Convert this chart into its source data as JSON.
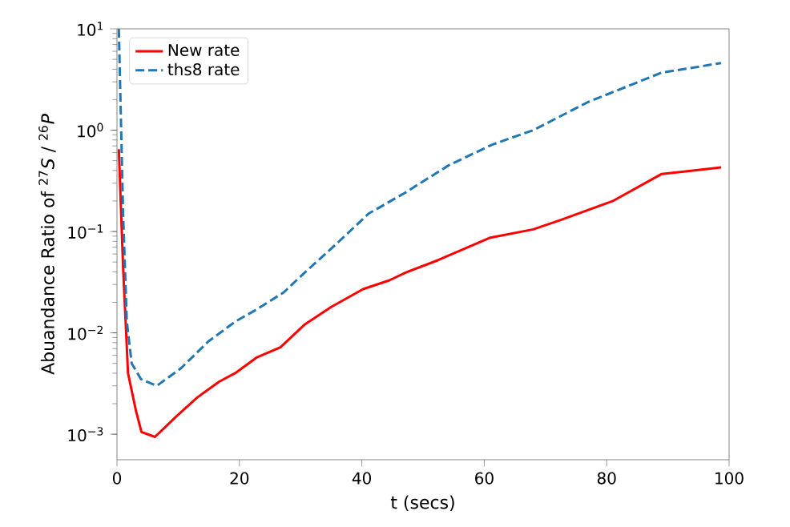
{
  "chart_data": {
    "type": "line",
    "xlabel": "t (secs)",
    "ylabel": "Abuandance Ratio of $^{27}$*S* / $^{26}$*P*",
    "log": "y",
    "xlim": [
      0,
      100
    ],
    "ylim": [
      0.00056,
      10
    ],
    "xticks": [
      0,
      20,
      40,
      60,
      80,
      100
    ],
    "yticks": [
      {
        "value": 0.001,
        "label": "10$^{−3}$"
      },
      {
        "value": 0.01,
        "label": "10$^{−2}$"
      },
      {
        "value": 0.1,
        "label": "10$^{−1}$"
      },
      {
        "value": 1,
        "label": "10$^{0}$"
      },
      {
        "value": 10,
        "label": "10$^{1}$"
      }
    ],
    "grid": false,
    "legend": "top left",
    "marker": "none",
    "series": [
      {
        "name": "New rate",
        "color": "#ff0000",
        "line_style": "solid",
        "x": [
          0.3,
          1,
          1.8,
          3.1,
          4,
          6.2,
          9.7,
          13.1,
          16.7,
          19.3,
          22.8,
          26.7,
          30.6,
          35,
          40.2,
          44.5,
          47,
          52.4,
          61,
          68,
          72.5,
          81,
          89,
          92.6,
          98.7
        ],
        "values": [
          0.65,
          0.044,
          0.004,
          0.0017,
          0.00105,
          0.00094,
          0.0015,
          0.0023,
          0.0033,
          0.004,
          0.0057,
          0.0072,
          0.012,
          0.018,
          0.027,
          0.033,
          0.039,
          0.052,
          0.087,
          0.105,
          0.13,
          0.2,
          0.37,
          0.39,
          0.43
        ]
      },
      {
        "name": "ths8 rate",
        "color": "#1f77b4",
        "line_style": "dashed",
        "x": [
          0.3,
          1,
          1.6,
          2.4,
          3.9,
          6.5,
          10.5,
          14.9,
          19.4,
          22.8,
          27.2,
          30.6,
          35.9,
          41.1,
          47,
          54.2,
          61.3,
          68,
          77,
          89,
          92.6,
          98.7
        ],
        "values": [
          10,
          0.15,
          0.013,
          0.005,
          0.0035,
          0.003,
          0.0045,
          0.0082,
          0.013,
          0.017,
          0.025,
          0.039,
          0.076,
          0.15,
          0.24,
          0.45,
          0.72,
          1.0,
          1.9,
          3.7,
          4.0,
          4.6
        ]
      }
    ]
  }
}
